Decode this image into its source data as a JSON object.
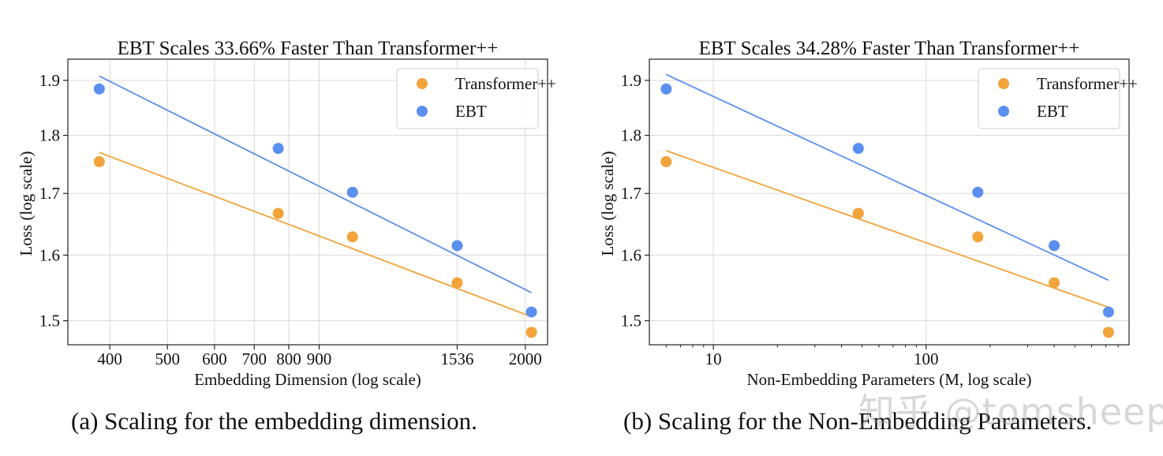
{
  "captions": {
    "a": "(a) Scaling for the embedding dimension.",
    "b": "(b) Scaling for the Non-Embedding Parameters."
  },
  "watermark": "知乎 @tomsheep",
  "colors": {
    "transformer": "#F2A33A",
    "ebt": "#5B8FF0",
    "grid": "#d9d9d9",
    "axis": "#222222"
  },
  "chart_data": [
    {
      "type": "scatter",
      "title": "EBT Scales 33.66% Faster Than Transformer++",
      "xlabel": "Embedding Dimension (log scale)",
      "ylabel": "Loss (log scale)",
      "x_scale": "log",
      "y_scale": "log",
      "xlim": [
        340,
        2180
      ],
      "ylim": [
        1.465,
        1.94
      ],
      "xticks": [
        400,
        500,
        600,
        700,
        800,
        900,
        1536,
        2000
      ],
      "xtick_labels": [
        "400",
        "500",
        "600",
        "700",
        "800",
        "900",
        "1536",
        "2000"
      ],
      "yticks": [
        1.5,
        1.6,
        1.7,
        1.8,
        1.9
      ],
      "ytick_labels": [
        "1.5",
        "1.6",
        "1.7",
        "1.8",
        "1.9"
      ],
      "grid": true,
      "legend": {
        "position": "top-right",
        "entries": [
          "Transformer++",
          "EBT"
        ]
      },
      "series": [
        {
          "name": "Transformer++",
          "color": "#F2A33A",
          "points": [
            [
              384,
              1.754
            ],
            [
              768,
              1.667
            ],
            [
              1024,
              1.629
            ],
            [
              1536,
              1.557
            ],
            [
              2048,
              1.483
            ]
          ],
          "fit": [
            [
              384,
              1.77
            ],
            [
              2048,
              1.506
            ]
          ]
        },
        {
          "name": "EBT",
          "color": "#5B8FF0",
          "points": [
            [
              384,
              1.884
            ],
            [
              768,
              1.777
            ],
            [
              1024,
              1.702
            ],
            [
              1536,
              1.615
            ],
            [
              2048,
              1.513
            ]
          ],
          "fit": [
            [
              384,
              1.908
            ],
            [
              2048,
              1.542
            ]
          ]
        }
      ]
    },
    {
      "type": "scatter",
      "title": "EBT Scales 34.28% Faster Than Transformer++",
      "xlabel": "Non-Embedding Parameters (M, log scale)",
      "ylabel": "Loss (log scale)",
      "x_scale": "log",
      "y_scale": "log",
      "xlim": [
        5,
        900
      ],
      "ylim": [
        1.465,
        1.94
      ],
      "xticks": [
        10,
        100
      ],
      "xtick_labels": [
        "10",
        "100"
      ],
      "minor_xticks": [
        6,
        7,
        8,
        9,
        20,
        30,
        40,
        50,
        60,
        70,
        80,
        90,
        200,
        300,
        400,
        500,
        600,
        700,
        800
      ],
      "yticks": [
        1.5,
        1.6,
        1.7,
        1.8,
        1.9
      ],
      "ytick_labels": [
        "1.5",
        "1.6",
        "1.7",
        "1.8",
        "1.9"
      ],
      "grid": true,
      "legend": {
        "position": "top-right",
        "entries": [
          "Transformer++",
          "EBT"
        ]
      },
      "series": [
        {
          "name": "Transformer++",
          "color": "#F2A33A",
          "points": [
            [
              6,
              1.754
            ],
            [
              48,
              1.667
            ],
            [
              175,
              1.629
            ],
            [
              400,
              1.557
            ],
            [
              720,
              1.483
            ]
          ],
          "fit": [
            [
              6,
              1.773
            ],
            [
              720,
              1.52
            ]
          ]
        },
        {
          "name": "EBT",
          "color": "#5B8FF0",
          "points": [
            [
              6,
              1.884
            ],
            [
              48,
              1.777
            ],
            [
              175,
              1.702
            ],
            [
              400,
              1.615
            ],
            [
              720,
              1.513
            ]
          ],
          "fit": [
            [
              6,
              1.911
            ],
            [
              720,
              1.561
            ]
          ]
        }
      ]
    }
  ]
}
